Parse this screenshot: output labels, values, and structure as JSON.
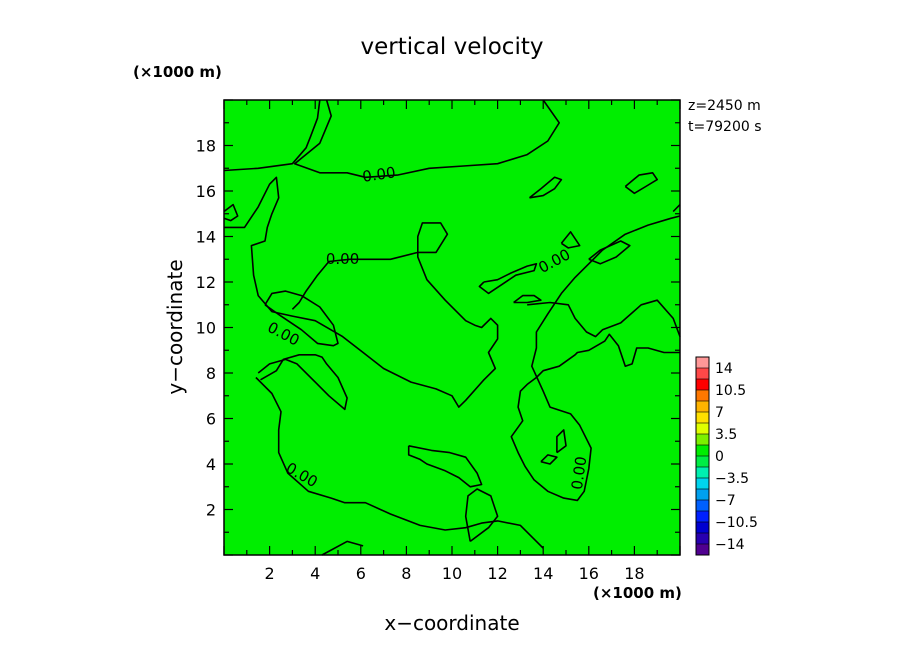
{
  "chart_data": {
    "type": "contour",
    "title": "vertical velocity",
    "xlabel": "x−coordinate",
    "ylabel": "y−coordinate",
    "x_unit": "(×1000 m)",
    "y_unit": "(×1000 m)",
    "xlim": [
      0,
      20
    ],
    "ylim": [
      0,
      20
    ],
    "x_ticks": [
      2,
      4,
      6,
      8,
      10,
      12,
      14,
      16,
      18
    ],
    "y_ticks": [
      2,
      4,
      6,
      8,
      10,
      12,
      14,
      16,
      18
    ],
    "x_tick_labels": [
      "2",
      "4",
      "6",
      "8",
      "10",
      "12",
      "14",
      "16",
      "18"
    ],
    "y_tick_labels": [
      "2",
      "4",
      "6",
      "8",
      "10",
      "12",
      "14",
      "16",
      "18"
    ],
    "annotations": [
      "z=2450 m",
      "t=79200 s"
    ],
    "fill_color": "#00ee00",
    "contour_level": 0.0,
    "contour_labels": [
      {
        "text": "0.00",
        "x": 6.8,
        "y": 16.7,
        "angle": -8
      },
      {
        "text": "0.00",
        "x": 5.2,
        "y": 13.0,
        "angle": 0
      },
      {
        "text": "0.00",
        "x": 14.5,
        "y": 12.9,
        "angle": -28
      },
      {
        "text": "0.00",
        "x": 2.6,
        "y": 9.7,
        "angle": 28
      },
      {
        "text": "0.00",
        "x": 3.4,
        "y": 3.5,
        "angle": 30
      },
      {
        "text": "0.00",
        "x": 15.6,
        "y": 3.6,
        "angle": -82
      }
    ],
    "contours": [
      [
        [
          0,
          16.9
        ],
        [
          1.5,
          17.0
        ],
        [
          3,
          17.2
        ],
        [
          3.6,
          17.9
        ],
        [
          3.8,
          18.4
        ],
        [
          4.1,
          19.2
        ],
        [
          4.2,
          20.0
        ]
      ],
      [
        [
          4.5,
          20.0
        ],
        [
          4.7,
          19.3
        ],
        [
          4.2,
          18.1
        ],
        [
          3.1,
          17.2
        ],
        [
          4.2,
          16.8
        ],
        [
          5.4,
          16.8
        ],
        [
          6.2,
          16.6
        ],
        [
          7.6,
          16.7
        ],
        [
          9.0,
          17.0
        ],
        [
          10.5,
          17.1
        ],
        [
          12.0,
          17.2
        ],
        [
          13.3,
          17.6
        ],
        [
          14.2,
          18.2
        ],
        [
          14.7,
          19.0
        ],
        [
          14.0,
          20.0
        ]
      ],
      [
        [
          0,
          14.4
        ],
        [
          0.9,
          14.4
        ],
        [
          1.5,
          15.3
        ],
        [
          2.0,
          16.3
        ],
        [
          2.3,
          16.6
        ],
        [
          2.4,
          15.7
        ],
        [
          2.1,
          15.0
        ],
        [
          1.9,
          14.4
        ],
        [
          1.8,
          13.8
        ],
        [
          1.2,
          13.6
        ],
        [
          1.3,
          12.3
        ],
        [
          1.5,
          11.4
        ],
        [
          2.1,
          10.7
        ],
        [
          3.0,
          10.5
        ],
        [
          4.0,
          10.3
        ],
        [
          5.2,
          9.6
        ],
        [
          6.1,
          8.9
        ],
        [
          7.0,
          8.2
        ],
        [
          8.2,
          7.6
        ],
        [
          9.3,
          7.3
        ],
        [
          10.0,
          7.0
        ],
        [
          10.3,
          6.5
        ],
        [
          10.6,
          6.8
        ],
        [
          11.4,
          7.7
        ],
        [
          11.9,
          8.2
        ],
        [
          11.6,
          8.9
        ],
        [
          12.0,
          9.5
        ],
        [
          12.0,
          10.1
        ],
        [
          11.7,
          10.4
        ],
        [
          11.3,
          10.0
        ],
        [
          11.0,
          10.1
        ],
        [
          10.6,
          10.3
        ],
        [
          9.7,
          11.2
        ],
        [
          8.9,
          12.1
        ],
        [
          8.5,
          13.1
        ],
        [
          8.5,
          14.0
        ],
        [
          8.7,
          14.6
        ],
        [
          9.5,
          14.6
        ],
        [
          9.8,
          14.1
        ],
        [
          9.3,
          13.3
        ],
        [
          8.5,
          13.3
        ],
        [
          7.3,
          13.0
        ],
        [
          6.3,
          13.0
        ],
        [
          5.5,
          13.0
        ],
        [
          4.6,
          12.9
        ],
        [
          4.1,
          12.3
        ],
        [
          3.6,
          11.6
        ],
        [
          3.3,
          11.1
        ],
        [
          3.0,
          10.8
        ]
      ],
      [
        [
          1.8,
          11.0
        ],
        [
          2.5,
          10.5
        ],
        [
          3.4,
          9.9
        ],
        [
          4.1,
          9.3
        ],
        [
          4.8,
          9.2
        ],
        [
          5.0,
          9.3
        ],
        [
          4.8,
          10.1
        ],
        [
          4.2,
          10.9
        ],
        [
          3.4,
          11.4
        ],
        [
          2.7,
          11.6
        ],
        [
          2.1,
          11.5
        ],
        [
          1.8,
          11.0
        ]
      ],
      [
        [
          1.5,
          8.0
        ],
        [
          2.0,
          8.4
        ],
        [
          2.7,
          8.6
        ],
        [
          3.2,
          8.4
        ],
        [
          4.0,
          7.6
        ],
        [
          4.6,
          7.0
        ],
        [
          5.3,
          6.4
        ],
        [
          5.4,
          6.9
        ],
        [
          5.0,
          7.8
        ],
        [
          4.5,
          8.4
        ],
        [
          4.3,
          8.7
        ],
        [
          4.0,
          8.8
        ],
        [
          3.3,
          8.8
        ],
        [
          2.6,
          8.6
        ],
        [
          2.3,
          8.1
        ],
        [
          1.6,
          7.7
        ]
      ],
      [
        [
          1.4,
          7.8
        ],
        [
          2.1,
          7.1
        ],
        [
          2.5,
          6.3
        ],
        [
          2.4,
          5.5
        ],
        [
          2.4,
          4.5
        ],
        [
          2.8,
          3.6
        ],
        [
          3.7,
          2.8
        ],
        [
          4.7,
          2.5
        ],
        [
          5.3,
          2.3
        ],
        [
          6.2,
          2.3
        ],
        [
          7.3,
          1.8
        ],
        [
          8.6,
          1.3
        ],
        [
          9.7,
          1.1
        ],
        [
          10.6,
          1.2
        ],
        [
          11.3,
          1.4
        ],
        [
          12.0,
          1.5
        ],
        [
          13.0,
          1.3
        ],
        [
          13.5,
          0.8
        ],
        [
          14.0,
          0.3
        ]
      ],
      [
        [
          4.3,
          0
        ],
        [
          5.4,
          0.6
        ],
        [
          6.1,
          0.4
        ]
      ],
      [
        [
          10.8,
          0.6
        ],
        [
          11.6,
          1.2
        ],
        [
          12.0,
          1.7
        ],
        [
          11.7,
          2.6
        ],
        [
          11.1,
          2.9
        ],
        [
          10.7,
          2.6
        ],
        [
          10.6,
          1.7
        ],
        [
          10.8,
          0.6
        ]
      ],
      [
        [
          8.1,
          4.8
        ],
        [
          9.1,
          4.6
        ],
        [
          9.9,
          4.5
        ],
        [
          10.6,
          4.3
        ],
        [
          11.1,
          3.6
        ],
        [
          11.3,
          3.1
        ],
        [
          10.8,
          3.0
        ],
        [
          10.3,
          3.4
        ],
        [
          9.7,
          3.7
        ],
        [
          8.9,
          4.0
        ],
        [
          8.6,
          4.2
        ],
        [
          8.1,
          4.4
        ],
        [
          8.1,
          4.8
        ]
      ],
      [
        [
          20,
          8.9
        ],
        [
          19.3,
          8.9
        ],
        [
          18.6,
          9.1
        ],
        [
          18.1,
          9.1
        ],
        [
          17.9,
          8.4
        ],
        [
          17.6,
          8.3
        ],
        [
          17.3,
          9.2
        ],
        [
          16.9,
          9.7
        ],
        [
          16.7,
          9.4
        ],
        [
          16.0,
          9.0
        ],
        [
          15.5,
          8.9
        ],
        [
          15.4,
          8.8
        ],
        [
          14.7,
          8.3
        ],
        [
          14.0,
          8.1
        ],
        [
          13.7,
          7.8
        ],
        [
          13.3,
          7.5
        ],
        [
          13.0,
          7.2
        ],
        [
          12.9,
          6.5
        ],
        [
          13.1,
          5.9
        ],
        [
          12.6,
          5.2
        ],
        [
          12.9,
          4.5
        ],
        [
          13.2,
          3.9
        ],
        [
          13.6,
          3.3
        ],
        [
          14.2,
          2.8
        ],
        [
          14.9,
          2.5
        ],
        [
          15.5,
          2.4
        ],
        [
          15.8,
          2.8
        ],
        [
          16.0,
          3.8
        ],
        [
          16.1,
          4.7
        ],
        [
          15.6,
          5.7
        ],
        [
          15.2,
          6.2
        ],
        [
          14.3,
          6.5
        ],
        [
          14.0,
          7.2
        ],
        [
          13.5,
          8.3
        ],
        [
          13.7,
          9.1
        ],
        [
          13.7,
          9.8
        ],
        [
          14.2,
          10.6
        ],
        [
          14.8,
          11.5
        ],
        [
          15.4,
          12.2
        ],
        [
          16.0,
          12.8
        ],
        [
          16.6,
          13.4
        ],
        [
          17.6,
          14.1
        ],
        [
          18.6,
          14.5
        ],
        [
          19.6,
          14.8
        ],
        [
          20,
          14.9
        ]
      ],
      [
        [
          11.4,
          12.0
        ],
        [
          12.0,
          12.1
        ],
        [
          12.6,
          12.4
        ],
        [
          13.3,
          12.7
        ],
        [
          13.7,
          12.8
        ],
        [
          13.6,
          12.5
        ],
        [
          12.8,
          12.3
        ],
        [
          12.2,
          11.9
        ],
        [
          11.6,
          11.5
        ],
        [
          11.2,
          11.8
        ],
        [
          11.4,
          12.0
        ]
      ],
      [
        [
          12.7,
          11.1
        ],
        [
          13.1,
          11.4
        ],
        [
          13.6,
          11.4
        ],
        [
          13.9,
          11.2
        ],
        [
          13.3,
          11.1
        ],
        [
          12.7,
          11.1
        ]
      ],
      [
        [
          13.3,
          11.0
        ],
        [
          14.3,
          11.1
        ],
        [
          15.1,
          11.0
        ],
        [
          15.4,
          10.4
        ],
        [
          15.9,
          9.8
        ],
        [
          16.3,
          9.6
        ],
        [
          16.6,
          9.9
        ],
        [
          17.4,
          10.2
        ],
        [
          18.3,
          11.0
        ],
        [
          19.0,
          11.2
        ],
        [
          19.7,
          10.4
        ],
        [
          20.0,
          9.6
        ]
      ],
      [
        [
          14.8,
          13.7
        ],
        [
          15.2,
          14.2
        ],
        [
          15.6,
          13.6
        ],
        [
          15.1,
          13.5
        ],
        [
          14.8,
          13.7
        ]
      ],
      [
        [
          16.0,
          13.0
        ],
        [
          16.5,
          13.4
        ],
        [
          17.4,
          13.8
        ],
        [
          17.8,
          13.6
        ],
        [
          17.2,
          13.1
        ],
        [
          16.5,
          12.8
        ],
        [
          16.0,
          13.0
        ]
      ],
      [
        [
          17.6,
          16.2
        ],
        [
          18.2,
          16.7
        ],
        [
          18.8,
          16.8
        ],
        [
          19.0,
          16.5
        ],
        [
          18.5,
          16.2
        ],
        [
          18.0,
          15.9
        ],
        [
          17.6,
          16.2
        ]
      ],
      [
        [
          13.4,
          15.7
        ],
        [
          13.9,
          16.1
        ],
        [
          14.5,
          16.6
        ],
        [
          14.8,
          16.5
        ],
        [
          14.5,
          16.1
        ],
        [
          14.0,
          15.8
        ],
        [
          13.4,
          15.7
        ]
      ],
      [
        [
          19.7,
          15.1
        ],
        [
          20,
          15.4
        ]
      ],
      [
        [
          0,
          15.1
        ],
        [
          0.4,
          15.4
        ],
        [
          0.6,
          14.9
        ],
        [
          0.3,
          14.7
        ],
        [
          0,
          14.8
        ]
      ],
      [
        [
          13.9,
          4.1
        ],
        [
          14.3,
          4.0
        ],
        [
          14.6,
          4.3
        ],
        [
          14.2,
          4.4
        ],
        [
          13.9,
          4.1
        ]
      ],
      [
        [
          14.6,
          4.5
        ],
        [
          15.0,
          4.8
        ],
        [
          14.9,
          5.5
        ],
        [
          14.6,
          5.2
        ],
        [
          14.6,
          4.5
        ]
      ]
    ],
    "colorbar": {
      "labels": [
        "14",
        "10.5",
        "7",
        "3.5",
        "0",
        "−3.5",
        "−7",
        "−10.5",
        "−14"
      ],
      "values": [
        14,
        10.5,
        7,
        3.5,
        0,
        -3.5,
        -7,
        -10.5,
        -14
      ],
      "colors": [
        "#ff9898",
        "#ff4848",
        "#ff0000",
        "#ff7800",
        "#ffb400",
        "#ffe000",
        "#e0ff00",
        "#7cf000",
        "#00ee00",
        "#00ee44",
        "#00f0b0",
        "#00d4ee",
        "#00a0ee",
        "#0060ff",
        "#0020ff",
        "#0000d0",
        "#2800b0",
        "#500090"
      ]
    }
  }
}
